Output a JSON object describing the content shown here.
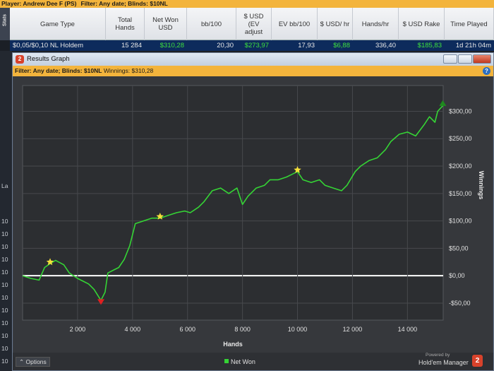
{
  "topbar": {
    "player": "Player: Andrew Dee F (PS)",
    "filter": "Filter: Any date; Blinds: $10NL"
  },
  "stats_tab": "Stats",
  "table": {
    "headers": [
      "Game Type",
      "Total Hands",
      "Net Won USD",
      "bb/100",
      "$ USD (EV adjust",
      "EV bb/100",
      "$ USD/ hr",
      "Hands/hr",
      "$ USD Rake",
      "Time Played"
    ],
    "rows": [
      [
        "$0,05/$0,10 NL Holdem",
        "15 284",
        "$310,28",
        "20,30",
        "$273,97",
        "17,93",
        "$6,88",
        "336,40",
        "$185,83",
        "1d 21h 04m"
      ]
    ]
  },
  "left_strip": [
    "La",
    "10",
    "10",
    "10",
    "10",
    "10",
    "10",
    "10",
    "10",
    "10",
    "10",
    "10",
    "10"
  ],
  "window": {
    "icon": "2",
    "title": "Results Graph",
    "filter_label": "Filter: Any date; Blinds: $10NL",
    "winnings": "Winnings: $310,28",
    "help": "?",
    "options": "Options",
    "powered_by": "Powered by",
    "brand": "Hold'em Manager",
    "brand_badge": "2"
  },
  "chart_data": {
    "type": "line",
    "x_label": "Hands",
    "y_label": "Winnings",
    "xlim": [
      0,
      15300
    ],
    "ylim": [
      -81,
      347
    ],
    "xticks": [
      {
        "value": 2000,
        "label": "2 000"
      },
      {
        "value": 4000,
        "label": "4 000"
      },
      {
        "value": 6000,
        "label": "6 000"
      },
      {
        "value": 8000,
        "label": "8 000"
      },
      {
        "value": 10000,
        "label": "10 000"
      },
      {
        "value": 12000,
        "label": "12 000"
      },
      {
        "value": 14000,
        "label": "14 000"
      }
    ],
    "yticks": [
      {
        "value": -50,
        "label": "-$50,00"
      },
      {
        "value": 0,
        "label": "$0,00"
      },
      {
        "value": 50,
        "label": "$50,00"
      },
      {
        "value": 100,
        "label": "$100,00"
      },
      {
        "value": 150,
        "label": "$150,00"
      },
      {
        "value": 200,
        "label": "$200,00"
      },
      {
        "value": 250,
        "label": "$250,00"
      },
      {
        "value": 300,
        "label": "$300,00"
      }
    ],
    "grid": true,
    "zero_line_color": "#ffffff",
    "x": [
      0,
      300,
      600,
      800,
      1000,
      1200,
      1500,
      1700,
      2000,
      2200,
      2400,
      2600,
      2850,
      3000,
      3100,
      3300,
      3500,
      3700,
      3900,
      4100,
      4400,
      4700,
      5000,
      5300,
      5600,
      5900,
      6100,
      6400,
      6600,
      6900,
      7200,
      7500,
      7800,
      8000,
      8200,
      8500,
      8800,
      9000,
      9300,
      9600,
      9800,
      10000,
      10200,
      10500,
      10800,
      11000,
      11300,
      11600,
      11800,
      12100,
      12300,
      12600,
      12900,
      13200,
      13400,
      13700,
      14000,
      14300,
      14600,
      14800,
      15000,
      15100,
      15284
    ],
    "series": [
      {
        "name": "Net Won",
        "color": "#35d435",
        "values": [
          0,
          -5,
          -8,
          15,
          22,
          28,
          20,
          5,
          -5,
          -10,
          -15,
          -25,
          -45,
          -30,
          5,
          10,
          15,
          30,
          55,
          95,
          100,
          105,
          105,
          110,
          115,
          118,
          115,
          125,
          135,
          155,
          160,
          150,
          160,
          130,
          145,
          160,
          165,
          175,
          175,
          180,
          185,
          190,
          175,
          170,
          175,
          165,
          160,
          155,
          165,
          190,
          200,
          210,
          215,
          230,
          245,
          258,
          262,
          255,
          275,
          290,
          280,
          300,
          310
        ]
      }
    ],
    "markers": [
      {
        "x": 1000,
        "y": 25,
        "symbol": "star",
        "color": "#f5e03a"
      },
      {
        "x": 5000,
        "y": 108,
        "symbol": "star",
        "color": "#f5e03a"
      },
      {
        "x": 10000,
        "y": 193,
        "symbol": "star",
        "color": "#f5e03a"
      },
      {
        "x": 2850,
        "y": -48,
        "symbol": "triangle-down",
        "color": "#e02020"
      },
      {
        "x": 15284,
        "y": 315,
        "symbol": "triangle-up",
        "color": "#1e8a1e"
      }
    ]
  }
}
